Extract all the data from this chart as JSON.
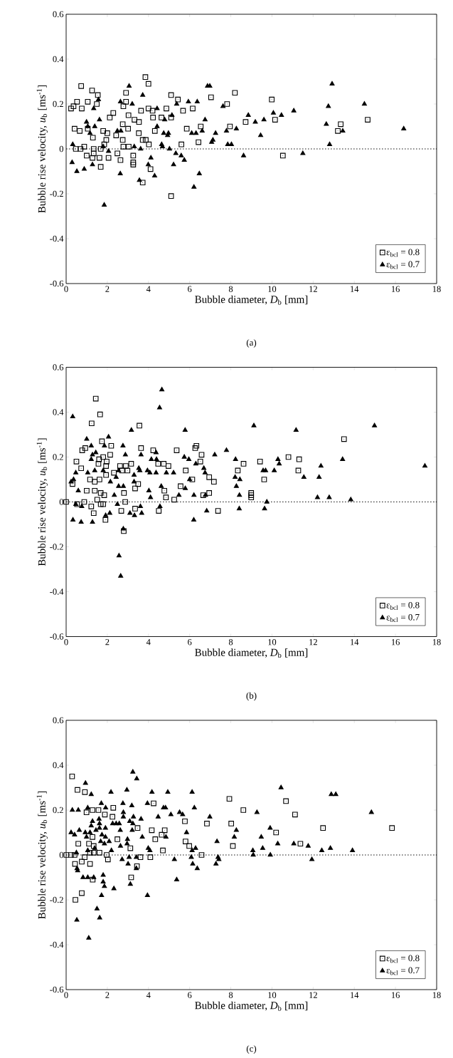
{
  "chart_data": [
    {
      "type": "scatter",
      "xlabel": "Bubble diameter, *D*$_{b}$ [mm]",
      "ylabel": "Bubble rise velocity, *u*$_{b}$ [ms$^{-1}$]",
      "xlim": [
        0,
        18
      ],
      "ylim": [
        -0.6,
        0.6
      ],
      "xticks": [
        0,
        2,
        4,
        6,
        8,
        10,
        12,
        14,
        16,
        18
      ],
      "yticks": [
        -0.6,
        -0.4,
        -0.2,
        0,
        0.2,
        0.4,
        0.6
      ],
      "legend": "bottom right",
      "grid": false,
      "annotations": [
        "(a)"
      ],
      "ref_lines": [
        {
          "axis": "y",
          "value": 0,
          "line_style": "dotted"
        }
      ],
      "series": [
        {
          "name": "ε$_{bcl}$ = 0.8",
          "color": "#000000",
          "marker": "square",
          "x": [
            3.85,
            4.0,
            0.73,
            1.26,
            2.91,
            1.54,
            8.2,
            5.1,
            5.43,
            7.04,
            1.05,
            2.91,
            1.49,
            0.53,
            0.36,
            7.82,
            0.24,
            0.76,
            2.78,
            4.87,
            6.15,
            3.64,
            4.0,
            4.2,
            5.68,
            2.29,
            2.12,
            3.03,
            4.22,
            4.63,
            5.1,
            3.32,
            2.75,
            3.54,
            3.01,
            0.41,
            6.54,
            7.96,
            8.72,
            5.86,
            0.66,
            1.05,
            1.8,
            2.0,
            2.43,
            4.31,
            3.53,
            1.3,
            3.87,
            2.75,
            1.95,
            3.72,
            1.85,
            4.02,
            6.43,
            5.6,
            0.88,
            3.04,
            2.78,
            0.47,
            0.7,
            1.34,
            1.68,
            1.0,
            1.34,
            1.28,
            1.62,
            2.06,
            2.49,
            2.64,
            3.26,
            3.26,
            3.26,
            1.68,
            4.1,
            3.72,
            5.1,
            9.99,
            10.15,
            13.34,
            14.65,
            10.53,
            13.2
          ],
          "values": [
            0.32,
            0.29,
            0.28,
            0.26,
            0.25,
            0.24,
            0.25,
            0.24,
            0.22,
            0.23,
            0.21,
            0.21,
            0.2,
            0.21,
            0.19,
            0.2,
            0.18,
            0.18,
            0.19,
            0.18,
            0.18,
            0.17,
            0.18,
            0.17,
            0.17,
            0.16,
            0.14,
            0.15,
            0.14,
            0.14,
            0.14,
            0.13,
            0.11,
            0.12,
            0.09,
            0.09,
            0.1,
            0.1,
            0.12,
            0.09,
            0.08,
            0.09,
            0.08,
            0.07,
            0.06,
            0.08,
            0.07,
            0.05,
            0.04,
            0.04,
            0.04,
            0.04,
            0.02,
            0.02,
            0.03,
            0.02,
            0.01,
            0.01,
            0.01,
            0,
            0,
            0,
            0,
            -0.03,
            -0.02,
            -0.04,
            -0.04,
            -0.04,
            -0.02,
            -0.05,
            -0.03,
            -0.06,
            -0.07,
            -0.08,
            -0.09,
            -0.15,
            -0.21,
            0.22,
            0.13,
            0.11,
            0.13,
            -0.03,
            0.08
          ]
        },
        {
          "name": "ε$_{bcl}$ = 0.7",
          "color": "#000000",
          "marker": "triangle",
          "x": [
            3.06,
            6.87,
            6.98,
            3.72,
            1.57,
            2.64,
            5.94,
            6.37,
            3.21,
            5.37,
            7.62,
            1.34,
            4.42,
            8.85,
            5.14,
            1.62,
            4.79,
            6.75,
            0.99,
            2.66,
            2.49,
            4.42,
            4.97,
            4.74,
            4.93,
            6.1,
            6.31,
            6.61,
            7.26,
            7.79,
            8.27,
            7.13,
            7.07,
            7.85,
            8.03,
            0.32,
            4.64,
            4.68,
            5.02,
            3.62,
            3.31,
            2.06,
            5.33,
            5.59,
            5.74,
            8.62,
            4.12,
            0.29,
            5.22,
            3.99,
            0.88,
            1.28,
            0.52,
            2.63,
            4.3,
            6.47,
            3.56,
            6.21,
            1.85,
            1.05,
            1.16,
            1.39,
            1.8,
            12.92,
            14.49,
            12.74,
            9.19,
            9.61,
            10.07,
            10.46,
            11.06,
            9.45,
            12.64,
            13.44,
            16.4,
            12.8,
            11.5
          ],
          "values": [
            0.28,
            0.28,
            0.28,
            0.24,
            0.22,
            0.21,
            0.21,
            0.21,
            0.2,
            0.2,
            0.19,
            0.18,
            0.18,
            0.15,
            0.15,
            0.13,
            0.13,
            0.13,
            0.12,
            0.08,
            0.08,
            0.1,
            0.07,
            0.07,
            0.06,
            0.07,
            0.07,
            0.08,
            0.07,
            0.08,
            0.09,
            0.04,
            0.03,
            0.02,
            0.02,
            0.02,
            0.02,
            0.01,
            0,
            0,
            0.01,
            -0.01,
            -0.02,
            -0.03,
            -0.05,
            -0.03,
            -0.04,
            -0.06,
            -0.07,
            -0.07,
            -0.09,
            -0.07,
            -0.1,
            -0.11,
            -0.12,
            -0.11,
            -0.14,
            -0.17,
            -0.25,
            0.1,
            0.07,
            0.1,
            0.01,
            0.29,
            0.2,
            0.19,
            0.12,
            0.13,
            0.16,
            0.15,
            0.17,
            0.06,
            0.11,
            0.08,
            0.09,
            0.02,
            -0.02
          ]
        }
      ]
    },
    {
      "type": "scatter",
      "xlabel": "Bubble diameter, *D*$_{b}$ [mm]",
      "ylabel": "Bubble rise velocity, *u*$_{b}$ [ms$^{-1}$]",
      "xlim": [
        0,
        18
      ],
      "ylim": [
        -0.6,
        0.6
      ],
      "xticks": [
        0,
        2,
        4,
        6,
        8,
        10,
        12,
        14,
        16,
        18
      ],
      "yticks": [
        -0.6,
        -0.4,
        -0.2,
        0,
        0.2,
        0.4,
        0.6
      ],
      "legend": "bottom right",
      "grid": false,
      "annotations": [
        "(b)"
      ],
      "ref_lines": [
        {
          "axis": "y",
          "value": 0,
          "line_style": "dotted"
        }
      ],
      "series": [
        {
          "name": "ε$_{bcl}$ = 0.8",
          "color": "#000000",
          "marker": "square",
          "x": [
            1.44,
            1.65,
            1.24,
            3.56,
            1.74,
            0.93,
            0.78,
            2.19,
            2.14,
            3.64,
            4.23,
            5.37,
            6.33,
            6.27,
            6.58,
            6.52,
            0.5,
            1.8,
            1.6,
            1.97,
            1.57,
            1.94,
            3.16,
            2.62,
            2.9,
            2.72,
            2.98,
            2.32,
            0.73,
            1.94,
            4.47,
            4.74,
            4.97,
            5.81,
            8.34,
            8.62,
            6.13,
            6.95,
            7.18,
            3.5,
            0.31,
            1.16,
            1.39,
            1.62,
            5.56,
            3.35,
            4.77,
            2.81,
            1.0,
            1.39,
            1.68,
            1.85,
            1.51,
            1.68,
            1.8,
            6.95,
            6.66,
            4.85,
            5.25,
            2.87,
            0,
            0.88,
            0.53,
            1.22,
            3.35,
            4.5,
            2.68,
            7.38,
            1.34,
            1.91,
            2.8,
            9.42,
            10.8,
            11.32,
            11.28,
            9.62,
            13.5,
            8.99,
            8.99,
            8.99
          ],
          "values": [
            0.46,
            0.39,
            0.35,
            0.34,
            0.27,
            0.24,
            0.23,
            0.25,
            0.21,
            0.24,
            0.23,
            0.23,
            0.25,
            0.24,
            0.21,
            0.18,
            0.18,
            0.2,
            0.19,
            0.18,
            0.17,
            0.16,
            0.17,
            0.16,
            0.16,
            0.14,
            0.14,
            0.13,
            0.15,
            0.12,
            0.17,
            0.17,
            0.16,
            0.14,
            0.14,
            0.17,
            0.1,
            0.11,
            0.09,
            0.08,
            0.08,
            0.1,
            0.09,
            0.1,
            0.07,
            0.06,
            0.05,
            0.04,
            0.05,
            0.05,
            0.04,
            0.03,
            0.01,
            -0.01,
            -0.01,
            0.04,
            0.03,
            0.02,
            0.01,
            0,
            0,
            0,
            -0.01,
            -0.02,
            -0.03,
            -0.04,
            -0.04,
            -0.04,
            -0.05,
            -0.08,
            -0.13,
            0.18,
            0.2,
            0.19,
            0.14,
            0.1,
            0.28,
            0.04,
            0.03,
            0.02
          ]
        },
        {
          "name": "ε$_{bcl}$ = 0.7",
          "color": "#000000",
          "marker": "triangle",
          "x": [
            4.54,
            4.65,
            0.32,
            3.17,
            5.78,
            1.0,
            2.06,
            1.22,
            1.86,
            2.76,
            1.44,
            1.28,
            2.88,
            3.64,
            4.37,
            7.79,
            7.22,
            5.74,
            5.96,
            4.14,
            4.39,
            6.3,
            8.23,
            1.22,
            0.47,
            1.39,
            1.8,
            3.53,
            3.58,
            3.95,
            4.07,
            4.37,
            4.87,
            5.22,
            6.69,
            6.75,
            2.55,
            3.3,
            1.05,
            0.36,
            0.24,
            2.15,
            2.43,
            2.55,
            2.78,
            3.3,
            4.62,
            5.79,
            6.0,
            8.21,
            8.44,
            8.27,
            0.59,
            2.34,
            4.02,
            4.1,
            5.48,
            6.21,
            6.77,
            8.42,
            2.49,
            4.56,
            0.47,
            0.76,
            3.61,
            3.1,
            3.32,
            3.67,
            2.12,
            1.92,
            6.83,
            8.41,
            0.33,
            0.73,
            1.28,
            6.2,
            2.78,
            2.57,
            2.65,
            9.12,
            11.17,
            14.98,
            10.29,
            10.35,
            10.11,
            9.57,
            9.69,
            11.55,
            12.29,
            12.38,
            13.43,
            17.43,
            12.21,
            12.78,
            13.83,
            9.75,
            9.64
          ],
          "values": [
            0.42,
            0.5,
            0.38,
            0.32,
            0.32,
            0.28,
            0.29,
            0.25,
            0.25,
            0.25,
            0.22,
            0.21,
            0.21,
            0.21,
            0.22,
            0.23,
            0.21,
            0.2,
            0.19,
            0.19,
            0.19,
            0.17,
            0.19,
            0.19,
            0.13,
            0.14,
            0.14,
            0.15,
            0.14,
            0.14,
            0.13,
            0.13,
            0.13,
            0.13,
            0.15,
            0.13,
            0.14,
            0.12,
            0.13,
            0.1,
            0.09,
            0.09,
            0.11,
            0.07,
            0.07,
            0.09,
            0.07,
            0.06,
            0.1,
            0.11,
            0.1,
            0.07,
            0.05,
            0.03,
            0.05,
            0.02,
            0.03,
            0.03,
            0.03,
            0.03,
            -0.01,
            -0.02,
            -0.01,
            -0.02,
            -0.02,
            -0.05,
            -0.06,
            -0.05,
            -0.05,
            -0.06,
            -0.04,
            -0.03,
            -0.08,
            -0.09,
            -0.09,
            -0.08,
            -0.12,
            -0.24,
            -0.33,
            0.34,
            0.32,
            0.34,
            0.19,
            0.17,
            0.14,
            0.14,
            0.14,
            0.11,
            0.11,
            0.16,
            0.19,
            0.16,
            0.02,
            0.02,
            0.01,
            0,
            -0.03
          ]
        }
      ]
    },
    {
      "type": "scatter",
      "xlabel": "Bubble diameter, *D*$_{b}$ [mm]",
      "ylabel": "Bubble rise velocity, *u*$_{b}$ [ms$^{-1}$]",
      "xlim": [
        0,
        18
      ],
      "ylim": [
        -0.6,
        0.6
      ],
      "xticks": [
        0,
        2,
        4,
        6,
        8,
        10,
        12,
        14,
        16,
        18
      ],
      "yticks": [
        -0.6,
        -0.4,
        -0.2,
        0,
        0.2,
        0.4,
        0.6
      ],
      "legend": "bottom right",
      "grid": false,
      "annotations": [
        "(c)"
      ],
      "ref_lines": [
        {
          "axis": "y",
          "value": 0,
          "line_style": "dotted"
        }
      ],
      "series": [
        {
          "name": "ε$_{bcl}$ = 0.8",
          "color": "#000000",
          "marker": "square",
          "x": [
            0.29,
            0.55,
            0.91,
            2.29,
            7.93,
            8.61,
            0.99,
            1.28,
            1.57,
            1.88,
            4.25,
            2.25,
            5.77,
            6.84,
            8.02,
            3.47,
            4.16,
            4.79,
            4.64,
            4.33,
            2.49,
            1.28,
            0.59,
            1.11,
            1.34,
            5.8,
            5.98,
            8.1,
            3.12,
            4.7,
            1.62,
            1.16,
            1.34,
            6.58,
            0.01,
            0.24,
            0.41,
            1.97,
            2.03,
            0.9,
            3.61,
            4.09,
            0.43,
            0.76,
            1.16,
            3.44,
            3.16,
            1.29,
            0.76,
            0.45,
            10.68,
            11.12,
            10.2,
            12.48,
            15.83,
            11.38
          ],
          "values": [
            0.35,
            0.29,
            0.28,
            0.21,
            0.25,
            0.2,
            0.19,
            0.2,
            0.2,
            0.18,
            0.23,
            0.17,
            0.15,
            0.14,
            0.14,
            0.12,
            0.11,
            0.11,
            0.09,
            0.07,
            0.07,
            0.08,
            0.05,
            0.05,
            0.04,
            0.06,
            0.04,
            0.04,
            0.03,
            0.02,
            0.01,
            0.01,
            0.01,
            0,
            0,
            0,
            0,
            0,
            -0.02,
            -0.01,
            -0.01,
            -0.01,
            -0.04,
            -0.03,
            -0.04,
            -0.05,
            -0.1,
            -0.11,
            -0.17,
            -0.2,
            0.24,
            0.18,
            0.1,
            0.12,
            0.12,
            0.05
          ]
        },
        {
          "name": "ε$_{bcl}$ = 0.7",
          "color": "#000000",
          "marker": "triangle",
          "x": [
            3.24,
            3.43,
            0.94,
            2.18,
            2.95,
            4.17,
            4.94,
            6.12,
            1.22,
            6.23,
            1.71,
            1.92,
            2.76,
            3.19,
            3.95,
            4.73,
            4.83,
            1.05,
            0.59,
            0.3,
            2.78,
            2.78,
            3.27,
            3.64,
            5.09,
            4.47,
            5.51,
            5.66,
            6.98,
            1.6,
            1.28,
            1.62,
            1.62,
            2.26,
            2.43,
            2.58,
            3.09,
            3.24,
            1.22,
            1.91,
            3.21,
            2.63,
            1.45,
            0.24,
            0.41,
            0.64,
            0.93,
            0.99,
            1.16,
            1.74,
            1.91,
            3.7,
            4.85,
            5.85,
            8.27,
            8.17,
            2.98,
            1.68,
            1.86,
            2.09,
            2.64,
            2.96,
            7.33,
            3.99,
            4.07,
            2.2,
            6.12,
            6.29,
            1.39,
            1.05,
            0.5,
            3.06,
            3.41,
            6.08,
            7.38,
            7.42,
            2.72,
            5.26,
            3.01,
            6.15,
            7.28,
            3.41,
            6.37,
            0.53,
            0.56,
            0.82,
            1.05,
            1.34,
            1.8,
            1.8,
            1.86,
            3.12,
            5.37,
            2.32,
            1.72,
            3.95,
            0.52,
            1.1,
            1.63,
            1.5,
            10.44,
            12.88,
            13.1,
            9.27,
            14.83,
            9.91,
            9.48,
            10.28,
            11.06,
            9.55,
            11.76,
            12.42,
            12.84,
            13.91,
            9.07,
            9.92,
            9.09,
            11.94
          ],
          "values": [
            0.37,
            0.34,
            0.32,
            0.28,
            0.29,
            0.28,
            0.28,
            0.28,
            0.27,
            0.21,
            0.23,
            0.21,
            0.23,
            0.22,
            0.23,
            0.21,
            0.21,
            0.21,
            0.2,
            0.2,
            0.19,
            0.17,
            0.17,
            0.16,
            0.18,
            0.17,
            0.19,
            0.18,
            0.17,
            0.16,
            0.15,
            0.14,
            0.12,
            0.14,
            0.14,
            0.14,
            0.15,
            0.14,
            0.13,
            0.12,
            0.11,
            0.11,
            0.11,
            0.1,
            0.09,
            0.11,
            0.1,
            0.08,
            0.1,
            0.09,
            0.08,
            0.08,
            0.08,
            0.1,
            0.11,
            0.08,
            0.07,
            0.06,
            0.05,
            0.06,
            0.04,
            0.05,
            0.06,
            0.03,
            0.02,
            0.02,
            0.02,
            0.03,
            0.03,
            0.02,
            0.01,
            -0.01,
            -0.01,
            -0.01,
            -0.01,
            -0.02,
            -0.02,
            -0.02,
            -0.04,
            -0.04,
            -0.04,
            -0.06,
            -0.06,
            -0.06,
            -0.07,
            -0.1,
            -0.1,
            -0.1,
            -0.09,
            -0.12,
            -0.14,
            -0.13,
            -0.11,
            -0.15,
            -0.18,
            -0.18,
            -0.29,
            -0.37,
            -0.28,
            -0.24,
            0.3,
            0.27,
            0.27,
            0.19,
            0.19,
            0.12,
            0.08,
            0.05,
            0.05,
            0.03,
            0.04,
            0.02,
            0.03,
            0.02,
            0.02,
            0,
            0,
            -0.02
          ]
        }
      ]
    }
  ]
}
